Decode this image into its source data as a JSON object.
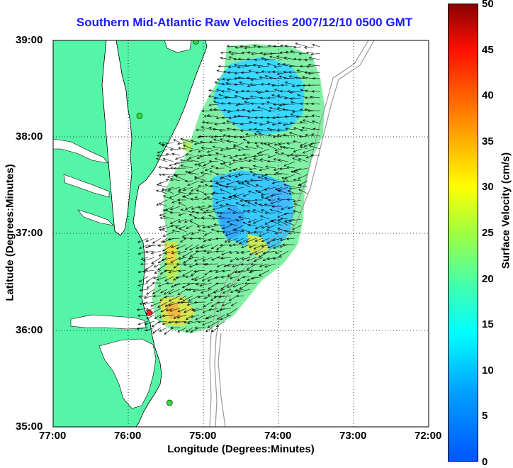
{
  "title": "Southern Mid-Atlantic Raw Velocities 2007/12/10 0500 GMT",
  "axes": {
    "xlabel": "Longitude (Degrees:Minutes)",
    "ylabel": "Latitude (Degrees:Minutes)",
    "x_ticks": [
      "77:00",
      "76:00",
      "75:00",
      "74:00",
      "73:00",
      "72:00"
    ],
    "y_ticks": [
      "39:00",
      "38:00",
      "37:00",
      "36:00",
      "35:00"
    ],
    "lon_range": [
      -77,
      -72
    ],
    "lat_range": [
      35,
      39
    ]
  },
  "colorbar": {
    "label": "Surface Velocity (cm/s)",
    "ticks": [
      "50",
      "45",
      "40",
      "35",
      "30",
      "25",
      "20",
      "15",
      "10",
      "5",
      "0"
    ],
    "range": [
      0,
      50
    ]
  },
  "colors": {
    "land": "#55f5a8",
    "water": "#ffffff",
    "title": "#1a1aff",
    "bathymetry": "#999999"
  },
  "stations": [
    {
      "lon": -75.1,
      "lat": 38.99,
      "color": "#33dd33"
    },
    {
      "lon": -75.85,
      "lat": 38.22,
      "color": "#33dd33"
    },
    {
      "lon": -75.72,
      "lat": 36.18,
      "color": "#ff2020"
    },
    {
      "lon": -75.45,
      "lat": 35.25,
      "color": "#33dd33"
    }
  ]
}
